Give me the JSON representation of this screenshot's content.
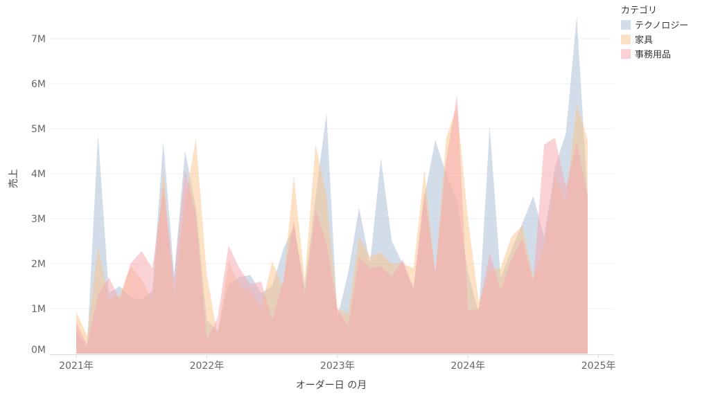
{
  "chart_data": {
    "type": "area",
    "title": "",
    "xlabel": "オーダー日 の月",
    "ylabel": "売上",
    "x_ticks": [
      "2021年",
      "2022年",
      "2023年",
      "2024年",
      "2025年"
    ],
    "y_ticks": [
      "0M",
      "1M",
      "2M",
      "3M",
      "4M",
      "5M",
      "6M",
      "7M"
    ],
    "ylim": [
      0,
      7600000
    ],
    "x_start": "2021-01",
    "grid": true,
    "legend": {
      "title": "カテゴリ",
      "position": "top-right"
    },
    "months": [
      "2021-01",
      "2021-02",
      "2021-03",
      "2021-04",
      "2021-05",
      "2021-06",
      "2021-07",
      "2021-08",
      "2021-09",
      "2021-10",
      "2021-11",
      "2021-12",
      "2022-01",
      "2022-02",
      "2022-03",
      "2022-04",
      "2022-05",
      "2022-06",
      "2022-07",
      "2022-08",
      "2022-09",
      "2022-10",
      "2022-11",
      "2022-12",
      "2023-01",
      "2023-02",
      "2023-03",
      "2023-04",
      "2023-05",
      "2023-06",
      "2023-07",
      "2023-08",
      "2023-09",
      "2023-10",
      "2023-11",
      "2023-12",
      "2024-01",
      "2024-02",
      "2024-03",
      "2024-04",
      "2024-05",
      "2024-06",
      "2024-07",
      "2024-08",
      "2024-09",
      "2024-10",
      "2024-11",
      "2024-12"
    ],
    "series": [
      {
        "name": "テクノロジー",
        "color": "#a8bcd4",
        "values": [
          500000,
          150000,
          4880000,
          1350000,
          1500000,
          1250000,
          1200000,
          1400000,
          4720000,
          1750000,
          4520000,
          3250000,
          750000,
          500000,
          1550000,
          1700000,
          1750000,
          1350000,
          1500000,
          2300000,
          2850000,
          1500000,
          3500000,
          5350000,
          800000,
          1800000,
          3250000,
          2000000,
          4350000,
          2500000,
          2000000,
          1450000,
          3500000,
          4750000,
          4000000,
          3400000,
          1800000,
          900000,
          5050000,
          1700000,
          2300000,
          2900000,
          3500000,
          2600000,
          4150000,
          4900000,
          7500000,
          3500000
        ]
      },
      {
        "name": "家具",
        "color": "#f9c48c",
        "values": [
          930000,
          400000,
          2380000,
          1200000,
          1300000,
          1950000,
          1650000,
          1200000,
          4100000,
          1200000,
          3400000,
          4780000,
          1750000,
          400000,
          2050000,
          1500000,
          1400000,
          1000000,
          2050000,
          1500000,
          3950000,
          1650000,
          4650000,
          3500000,
          1000000,
          900000,
          2600000,
          2150000,
          2250000,
          2000000,
          2000000,
          1900000,
          4100000,
          1750000,
          4800000,
          5500000,
          3000000,
          1150000,
          1850000,
          1900000,
          2600000,
          2850000,
          1700000,
          2400000,
          3950000,
          3350000,
          5550000,
          4750000
        ]
      },
      {
        "name": "事務用品",
        "color": "#f6a6ae",
        "values": [
          700000,
          200000,
          1300000,
          1700000,
          1200000,
          2000000,
          2280000,
          1900000,
          3700000,
          1650000,
          4100000,
          3100000,
          300000,
          800000,
          2400000,
          1900000,
          1550000,
          1600000,
          750000,
          1600000,
          2950000,
          1300000,
          3200000,
          2450000,
          1000000,
          600000,
          2150000,
          1900000,
          1950000,
          1700000,
          2100000,
          1450000,
          3600000,
          1800000,
          4300000,
          5750000,
          950000,
          1000000,
          2250000,
          1400000,
          2100000,
          2550000,
          1600000,
          4650000,
          4800000,
          3700000,
          4700000,
          3500000
        ]
      }
    ]
  }
}
